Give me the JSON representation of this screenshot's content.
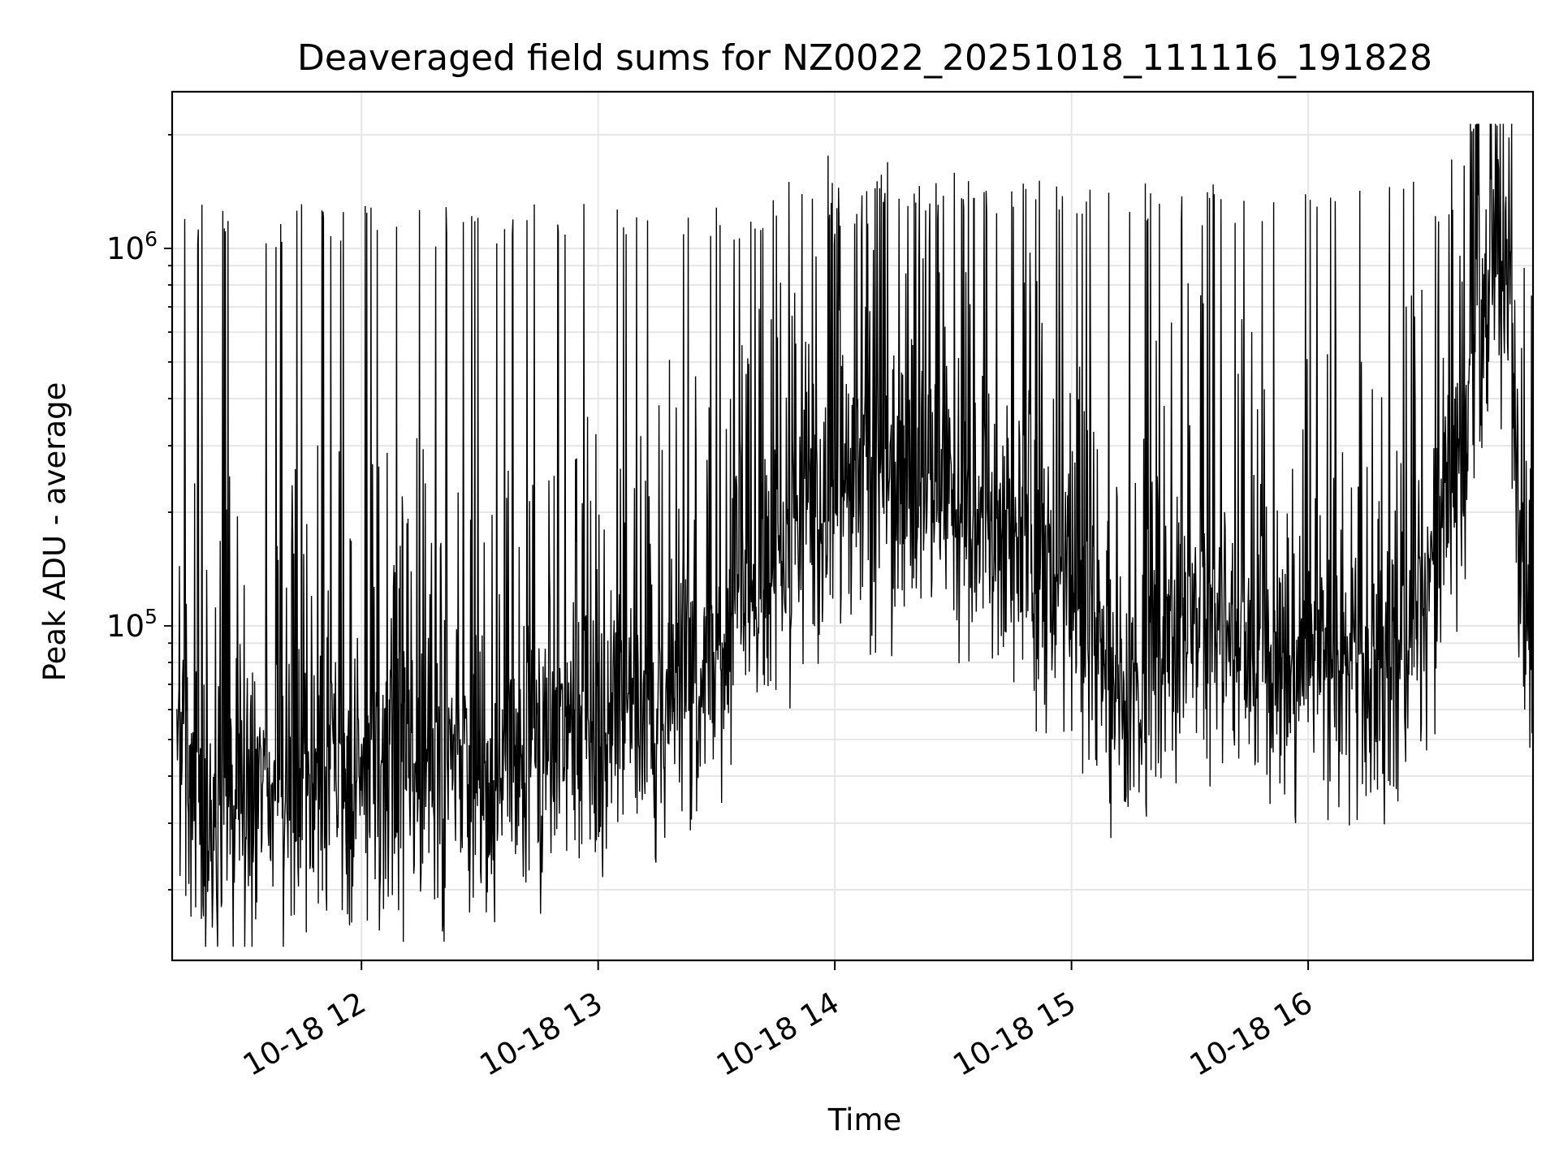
{
  "chart_data": {
    "type": "line",
    "title": "Deaveraged field sums for NZ0022_20251018_111116_191828",
    "xlabel": "Time",
    "ylabel": "Peak ADU - average",
    "yscale": "log",
    "xlim_hours": [
      11.2,
      16.95
    ],
    "ylim": [
      13000,
      2600000
    ],
    "grid": true,
    "line_color": "#000000",
    "grid_color": "#e6e6e6",
    "x_ticks": [
      {
        "hour": 12,
        "label": "10-18 12"
      },
      {
        "hour": 13,
        "label": "10-18 13"
      },
      {
        "hour": 14,
        "label": "10-18 14"
      },
      {
        "hour": 15,
        "label": "10-18 15"
      },
      {
        "hour": 16,
        "label": "10-18 16"
      }
    ],
    "y_ticks": [
      {
        "value": 100000,
        "base": "10",
        "exp": "5"
      },
      {
        "value": 1000000,
        "base": "10",
        "exp": "6"
      }
    ],
    "baseline_profile": {
      "hours": [
        11.22,
        11.3,
        11.5,
        11.7,
        11.85,
        12.0,
        12.3,
        12.6,
        12.9,
        13.2,
        13.5,
        13.8,
        14.0,
        14.3,
        14.6,
        14.8,
        15.0,
        15.2,
        15.5,
        15.8,
        16.0,
        16.3,
        16.5,
        16.65,
        16.75,
        16.85,
        16.88,
        16.95
      ],
      "values": [
        55000,
        33000,
        35000,
        36000,
        48000,
        42000,
        40000,
        45000,
        48000,
        62000,
        85000,
        155000,
        250000,
        220000,
        200000,
        150000,
        130000,
        60000,
        110000,
        80000,
        80000,
        70000,
        110000,
        300000,
        700000,
        1050000,
        200000,
        90000
      ]
    },
    "samples": 2600,
    "seed": 20251018
  }
}
